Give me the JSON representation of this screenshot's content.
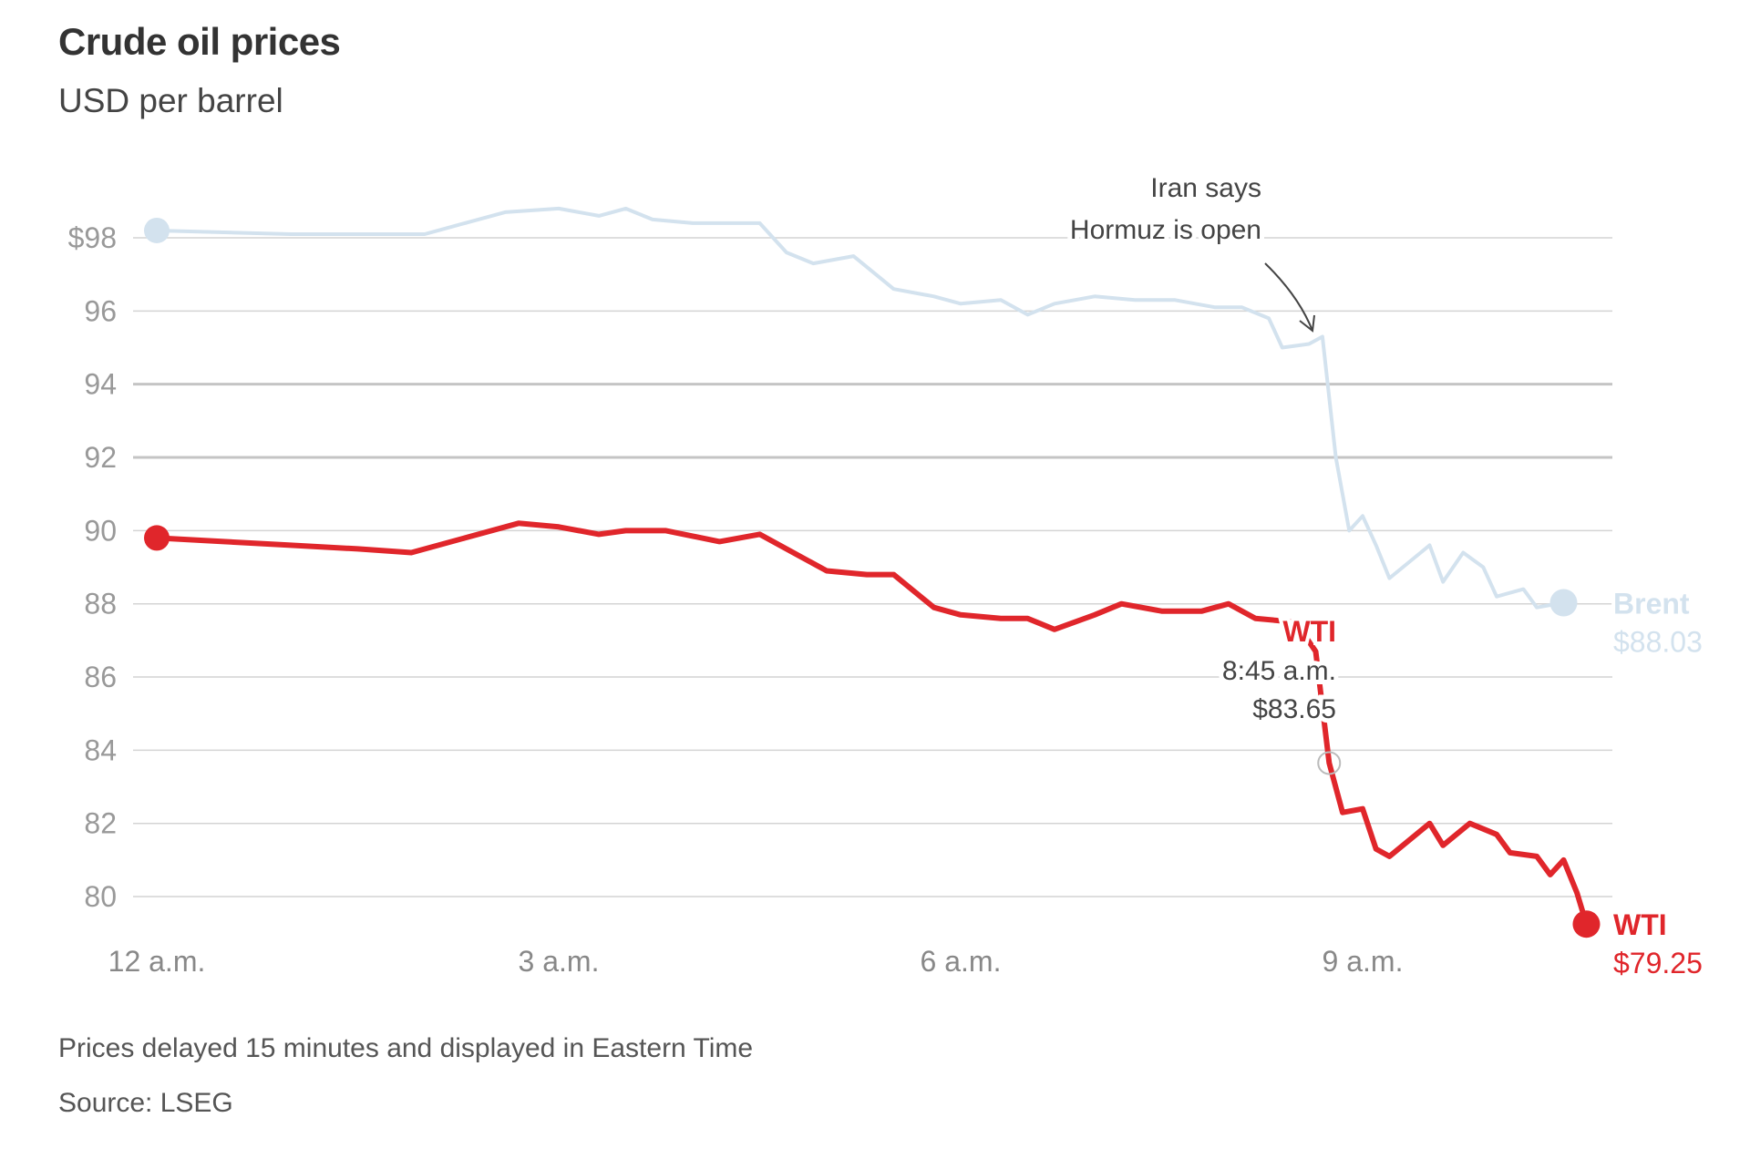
{
  "chart_data": {
    "type": "line",
    "title": "Crude oil prices",
    "subtitle": "USD per barrel",
    "xlabel": "",
    "ylabel": "USD per barrel",
    "ylim": [
      80,
      98
    ],
    "xlim_hours": [
      0,
      10.67
    ],
    "y_ticks": [
      {
        "value": 98,
        "label": "$98"
      },
      {
        "value": 96,
        "label": "96"
      },
      {
        "value": 94,
        "label": "94"
      },
      {
        "value": 92,
        "label": "92"
      },
      {
        "value": 90,
        "label": "90"
      },
      {
        "value": 88,
        "label": "88"
      },
      {
        "value": 86,
        "label": "86"
      },
      {
        "value": 84,
        "label": "84"
      },
      {
        "value": 82,
        "label": "82"
      },
      {
        "value": 80,
        "label": "80"
      }
    ],
    "x_ticks": [
      {
        "value": 0,
        "label": "12 a.m."
      },
      {
        "value": 3,
        "label": "3 a.m."
      },
      {
        "value": 6,
        "label": "6 a.m."
      },
      {
        "value": 9,
        "label": "9 a.m."
      }
    ],
    "grid": true,
    "series": [
      {
        "name": "Brent",
        "color": "#d3e2ee",
        "end_label": "Brent",
        "end_value_label": "$88.03",
        "x": [
          0,
          0.5,
          1.0,
          1.5,
          2.0,
          2.3,
          2.6,
          3.0,
          3.3,
          3.5,
          3.7,
          4.0,
          4.5,
          4.7,
          4.9,
          5.2,
          5.5,
          5.8,
          6.0,
          6.3,
          6.5,
          6.7,
          7.0,
          7.3,
          7.6,
          7.9,
          8.1,
          8.3,
          8.4,
          8.6,
          8.7,
          8.8,
          8.9,
          9.0,
          9.1,
          9.2,
          9.4,
          9.5,
          9.6,
          9.75,
          9.9,
          10.0,
          10.2,
          10.3,
          10.5
        ],
        "y": [
          98.2,
          98.15,
          98.1,
          98.1,
          98.1,
          98.4,
          98.7,
          98.8,
          98.6,
          98.8,
          98.5,
          98.4,
          98.4,
          97.6,
          97.3,
          97.5,
          96.6,
          96.4,
          96.2,
          96.3,
          95.9,
          96.2,
          96.4,
          96.3,
          96.3,
          96.1,
          96.1,
          95.8,
          95.0,
          95.1,
          95.3,
          92.0,
          90.0,
          90.4,
          89.6,
          88.7,
          89.3,
          89.6,
          88.6,
          89.4,
          89.0,
          88.2,
          88.4,
          87.9,
          88.03
        ]
      },
      {
        "name": "WTI",
        "color": "#e0262b",
        "end_label": "WTI",
        "end_value_label": "$79.25",
        "x": [
          0,
          0.5,
          1.0,
          1.5,
          1.9,
          2.3,
          2.7,
          3.0,
          3.3,
          3.5,
          3.8,
          4.2,
          4.5,
          4.8,
          5.0,
          5.3,
          5.5,
          5.8,
          6.0,
          6.3,
          6.5,
          6.7,
          7.0,
          7.2,
          7.5,
          7.8,
          8.0,
          8.2,
          8.5,
          8.65,
          8.75,
          8.85,
          9.0,
          9.1,
          9.2,
          9.5,
          9.6,
          9.8,
          10.0,
          10.1,
          10.3,
          10.4,
          10.5,
          10.6,
          10.67
        ],
        "y": [
          89.8,
          89.7,
          89.6,
          89.5,
          89.4,
          89.8,
          90.2,
          90.1,
          89.9,
          90.0,
          90.0,
          89.7,
          89.9,
          89.3,
          88.9,
          88.8,
          88.8,
          87.9,
          87.7,
          87.6,
          87.6,
          87.3,
          87.7,
          88.0,
          87.8,
          87.8,
          88.0,
          87.6,
          87.5,
          86.7,
          83.65,
          82.3,
          82.4,
          81.3,
          81.1,
          82.0,
          81.4,
          82.0,
          81.7,
          81.2,
          81.1,
          80.6,
          81.0,
          80.1,
          79.25
        ]
      }
    ],
    "annotations": [
      {
        "text_lines": [
          "Iran says",
          "Hormuz is open"
        ],
        "x": 8.75,
        "series": "Brent"
      },
      {
        "series_label": "WTI",
        "time_label": "8:45 a.m.",
        "value_label": "$83.65",
        "x": 8.75,
        "y": 83.65
      }
    ],
    "legend": "direct-labels-right"
  },
  "footer": {
    "note": "Prices delayed 15 minutes and displayed in Eastern Time",
    "source": "Source: LSEG"
  }
}
